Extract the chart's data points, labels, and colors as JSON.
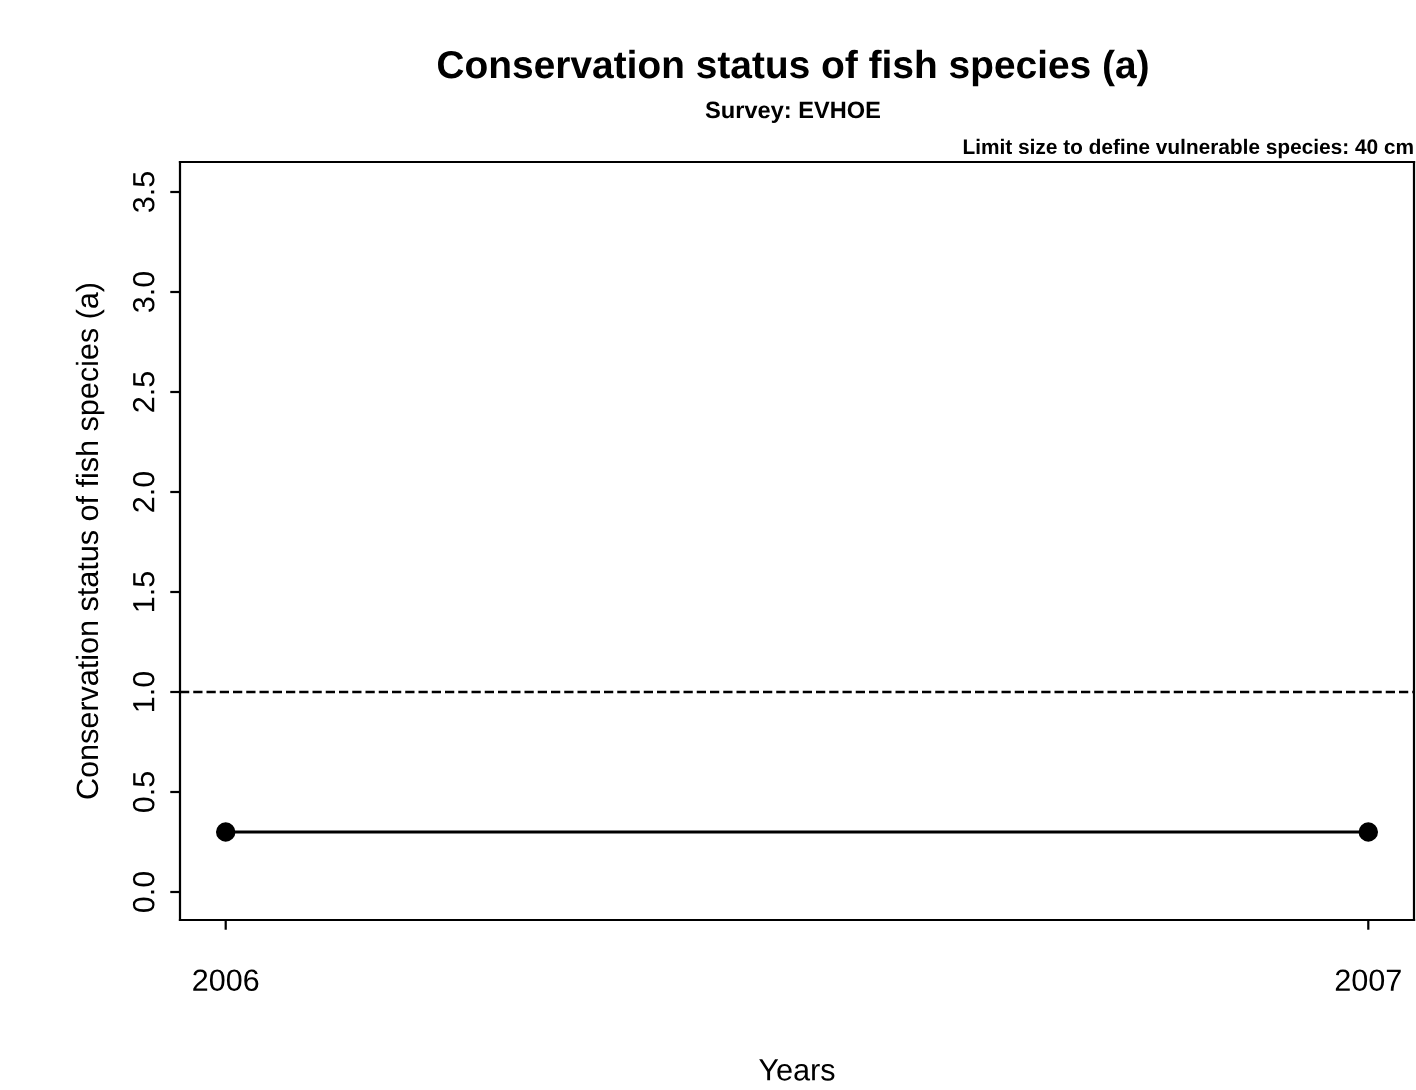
{
  "chart_data": {
    "type": "line",
    "title": "Conservation status of fish species (a)",
    "subtitle": "Survey: EVHOE",
    "annotations": [
      "Limit size to define vulnerable species: 40 cm"
    ],
    "xlabel": "Years",
    "ylabel": "Conservation status of fish species (a)",
    "x": [
      2006,
      2007
    ],
    "series": [
      {
        "color": "#000000",
        "values": [
          0.3,
          0.3
        ]
      }
    ],
    "marker": "circle",
    "line_style": "solid",
    "xlim": [
      2005.96,
      2007.04
    ],
    "xticks": [
      2006,
      2007
    ],
    "ylim": [
      -0.14,
      3.65
    ],
    "yticks": [
      {
        "value": 0,
        "label": "0.0"
      },
      0.5,
      {
        "value": 1,
        "label": "1.0"
      },
      1.5,
      {
        "value": 2,
        "label": "2.0"
      },
      2.5,
      {
        "value": 3,
        "label": "3.0"
      },
      3.5
    ],
    "ref_lines": [
      {
        "axis": "y",
        "value": 1,
        "color": "#000000",
        "line_style": "dashed"
      }
    ],
    "grid": false,
    "legend": false
  }
}
